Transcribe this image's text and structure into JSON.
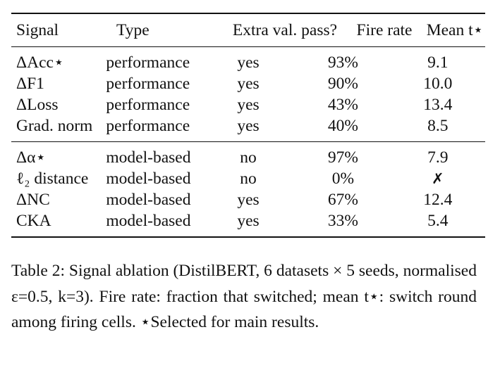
{
  "table": {
    "headers": [
      "Signal",
      "Type",
      "Extra val. pass?",
      "Fire rate",
      "Mean t⋆"
    ],
    "groups": [
      [
        {
          "signal": "ΔAcc⋆",
          "type": "performance",
          "extra": "yes",
          "fire_rate": "93%",
          "mean_t": "9.1"
        },
        {
          "signal": "ΔF1",
          "type": "performance",
          "extra": "yes",
          "fire_rate": "90%",
          "mean_t": "10.0"
        },
        {
          "signal": "ΔLoss",
          "type": "performance",
          "extra": "yes",
          "fire_rate": "43%",
          "mean_t": "13.4"
        },
        {
          "signal": "Grad. norm",
          "type": "performance",
          "extra": "yes",
          "fire_rate": "40%",
          "mean_t": "8.5"
        }
      ],
      [
        {
          "signal": "Δα⋆",
          "type": "model-based",
          "extra": "no",
          "fire_rate": "97%",
          "mean_t": "7.9"
        },
        {
          "signal": "ℓ₂ distance",
          "type": "model-based",
          "extra": "no",
          "fire_rate": "0%",
          "mean_t": "✗"
        },
        {
          "signal": "ΔNC",
          "type": "model-based",
          "extra": "yes",
          "fire_rate": "67%",
          "mean_t": "12.4"
        },
        {
          "signal": "CKA",
          "type": "model-based",
          "extra": "yes",
          "fire_rate": "33%",
          "mean_t": "5.4"
        }
      ]
    ]
  },
  "caption": {
    "text": "Table 2: Signal ablation (DistilBERT, 6 datasets × 5 seeds, normalised ε=0.5, k=3). Fire rate: fraction that switched; mean t⋆: switch round among firing cells. ⋆Selected for main results."
  }
}
